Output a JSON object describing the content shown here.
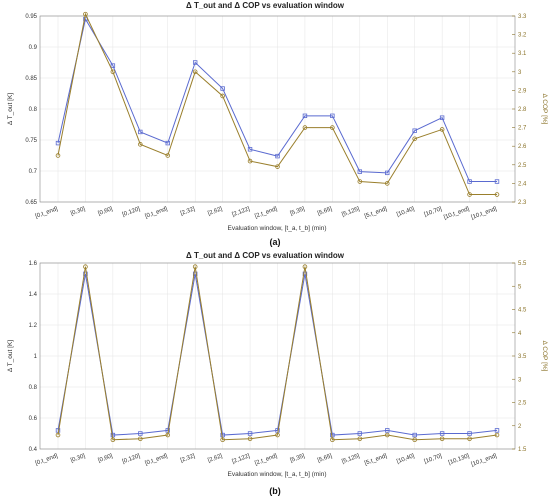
{
  "panels": [
    {
      "caption": "(a)",
      "title": "Δ T_out and Δ COP vs evaluation window",
      "xlabel": "Evaluation window, [t_a, t_b] (min)",
      "ylabel_left": "Δ T_out [K]",
      "ylabel_right": "Δ COP [%]",
      "chart_data": {
        "type": "line",
        "categories": [
          "[0,t_end]",
          "[0,30]",
          "[0,60]",
          "[0,120]",
          "[0,t_end]",
          "[2,32]",
          "[2,62]",
          "[2,122]",
          "[2,t_end]",
          "[5,35]",
          "[5,65]",
          "[5,125]",
          "[5,t_end]",
          "[10,40]",
          "[10,70]",
          "[10,t_end]",
          "[10,t_end]"
        ],
        "ylim_left": [
          0.65,
          0.95
        ],
        "yticks_left": [
          0.65,
          0.7,
          0.75,
          0.8,
          0.85,
          0.9,
          0.95
        ],
        "ylim_right": [
          2.3,
          3.3
        ],
        "yticks_right": [
          2.3,
          2.4,
          2.5,
          2.6,
          2.7,
          2.8,
          2.9,
          3.0,
          3.1,
          3.2,
          3.3
        ],
        "grid": true,
        "series": [
          {
            "axis": "left",
            "color": "#5a6ad0",
            "marker": "square",
            "values": [
              0.745,
              0.945,
              0.87,
              0.763,
              0.745,
              0.875,
              0.833,
              0.735,
              0.724,
              0.789,
              0.789,
              0.699,
              0.697,
              0.765,
              0.786,
              0.683,
              0.683
            ]
          },
          {
            "axis": "right",
            "color": "#9a7f2c",
            "marker": "circle",
            "values": [
              2.55,
              3.31,
              3.0,
              2.61,
              2.55,
              3.0,
              2.87,
              2.52,
              2.49,
              2.7,
              2.7,
              2.41,
              2.4,
              2.64,
              2.69,
              2.34,
              2.34
            ]
          }
        ]
      }
    },
    {
      "caption": "(b)",
      "title": "Δ T_out and Δ COP vs evaluation window",
      "xlabel": "Evaluation window, [t_a, t_b] (min)",
      "ylabel_left": "Δ T_out [K]",
      "ylabel_right": "Δ COP [%]",
      "chart_data": {
        "type": "line",
        "categories": [
          "[0,t_end]",
          "[0,30]",
          "[0,60]",
          "[0,120]",
          "[0,t_end]",
          "[2,32]",
          "[2,62]",
          "[2,122]",
          "[2,t_end]",
          "[5,35]",
          "[5,65]",
          "[5,125]",
          "[5,t_end]",
          "[10,40]",
          "[10,70]",
          "[10,130]",
          "[10,t_end]"
        ],
        "ylim_left": [
          0.4,
          1.6
        ],
        "yticks_left": [
          0.4,
          0.6,
          0.8,
          1.0,
          1.2,
          1.4,
          1.6
        ],
        "ylim_right": [
          1.5,
          5.5
        ],
        "yticks_right": [
          1.5,
          2.0,
          2.5,
          3.0,
          3.5,
          4.0,
          4.5,
          5.0,
          5.5
        ],
        "grid": true,
        "series": [
          {
            "axis": "left",
            "color": "#5a6ad0",
            "marker": "square",
            "values": [
              0.52,
              1.53,
              0.49,
              0.5,
              0.52,
              1.53,
              0.49,
              0.5,
              0.52,
              1.53,
              0.49,
              0.5,
              0.52,
              0.49,
              0.5,
              0.5,
              0.52
            ]
          },
          {
            "axis": "right",
            "color": "#9a7f2c",
            "marker": "circle",
            "values": [
              1.8,
              5.42,
              1.7,
              1.72,
              1.8,
              5.42,
              1.7,
              1.72,
              1.8,
              5.42,
              1.7,
              1.72,
              1.8,
              1.7,
              1.72,
              1.72,
              1.8
            ]
          }
        ]
      }
    }
  ]
}
